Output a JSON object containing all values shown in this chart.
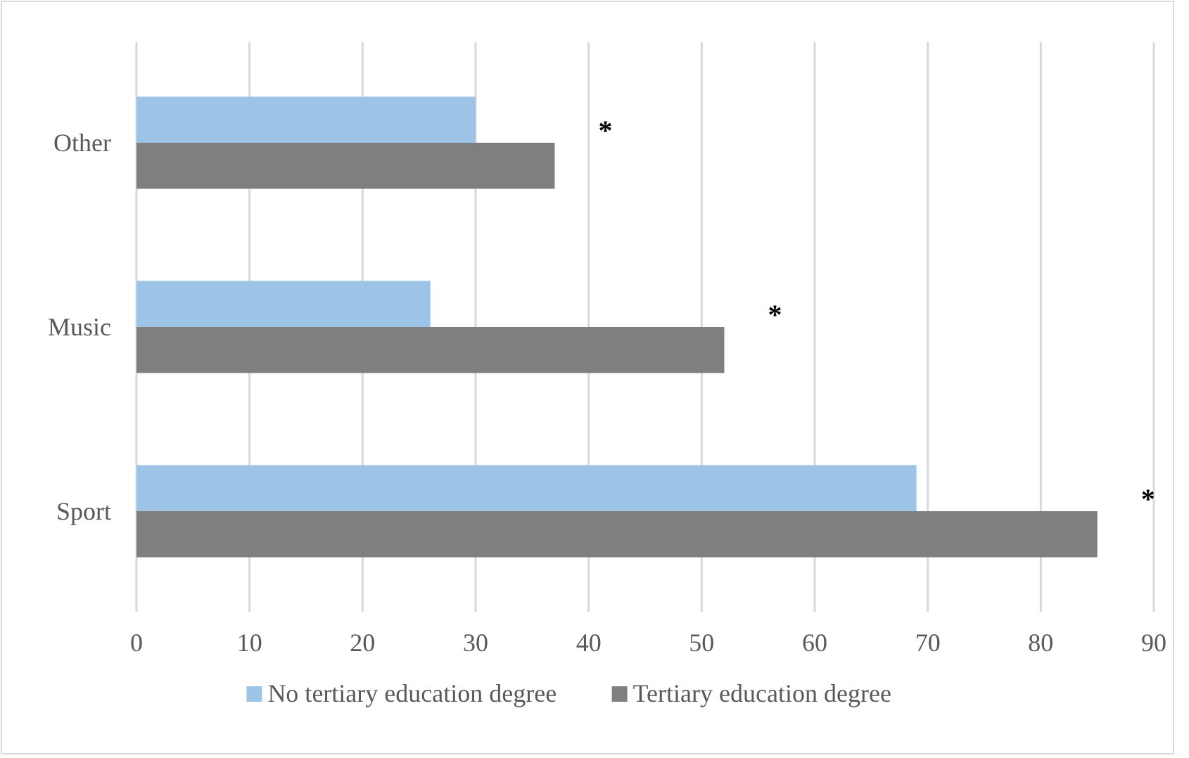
{
  "chart_data": {
    "type": "bar",
    "orientation": "horizontal",
    "categories": [
      "Other",
      "Music",
      "Sport"
    ],
    "series": [
      {
        "name": "No tertiary education degree",
        "color": "#9dc3e6",
        "values": [
          30,
          26,
          69
        ]
      },
      {
        "name": "Tertiary education degree",
        "color": "#7f7f7f",
        "values": [
          37,
          52,
          85
        ]
      }
    ],
    "xlim": [
      0,
      90
    ],
    "xticks": [
      0,
      10,
      20,
      30,
      40,
      50,
      60,
      70,
      80,
      90
    ],
    "grid": "x",
    "legend": "bottom",
    "annotations": [
      "*",
      "*",
      "*"
    ]
  }
}
